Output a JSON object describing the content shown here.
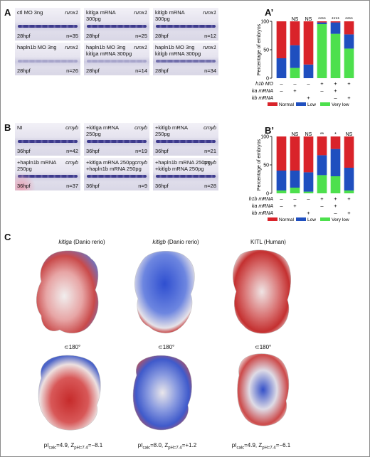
{
  "panel_labels": {
    "A": "A",
    "A_prime": "A’",
    "B": "B",
    "B_prime": "B’",
    "C": "C"
  },
  "panel_A": {
    "tiles": [
      {
        "line1": "ctl MO 3ng",
        "line2": "",
        "probe": "runx1",
        "stage": "28hpf",
        "n": "n=35",
        "signal": "strong"
      },
      {
        "line1": "kitlga mRNA",
        "line2": "300pg",
        "probe": "runx1",
        "stage": "28hpf",
        "n": "n=25",
        "signal": "strong"
      },
      {
        "line1": "kitlgb mRNA",
        "line2": "300pg",
        "probe": "runx1",
        "stage": "28hpf",
        "n": "n=12",
        "signal": "strong"
      },
      {
        "line1": "hapln1b MO 3ng",
        "line2": "",
        "probe": "runx1",
        "stage": "28hpf",
        "n": "n=26",
        "signal": "faint"
      },
      {
        "line1": "hapln1b MO 3ng",
        "line2": "kitlga mRNA 300pg",
        "probe": "runx1",
        "stage": "28hpf",
        "n": "n=14",
        "signal": "faint"
      },
      {
        "line1": "hapln1b MO 3ng",
        "line2": "kitlgb mRNA 300pg",
        "probe": "runx1",
        "stage": "28hpf",
        "n": "n=34",
        "signal": "mid"
      }
    ]
  },
  "panel_B": {
    "tiles": [
      {
        "line1": "NI",
        "line2": "",
        "probe": "cmyb",
        "stage": "36hpf",
        "n": "n=42",
        "signal": "strong"
      },
      {
        "line1": "+kitlga mRNA",
        "line2": "250pg",
        "probe": "cmyb",
        "stage": "36hpf",
        "n": "n=19",
        "signal": "strong"
      },
      {
        "line1": "+kitlgb mRNA",
        "line2": "250pg",
        "probe": "cmyb",
        "stage": "36hpf",
        "n": "n=21",
        "signal": "strong"
      },
      {
        "line1": "+hapln1b mRNA",
        "line2": "250pg",
        "probe": "cmyb",
        "stage": "36hpf",
        "n": "n=37",
        "signal": "strong"
      },
      {
        "line1": "+kitlga mRNA 250pg",
        "line2": "+hapln1b mRNA 250pg",
        "probe": "cmyb",
        "stage": "36hpf",
        "n": "n=9",
        "signal": "strong"
      },
      {
        "line1": "+hapln1b mRNA 250pg",
        "line2": "+kitlgb mRNA 250pg",
        "probe": "cmyb",
        "stage": "36hpf",
        "n": "n=28",
        "signal": "strong"
      }
    ]
  },
  "chart_data": [
    {
      "type": "bar",
      "stacked": true,
      "ylabel": "Percentage of embryos",
      "ylim": [
        0,
        100
      ],
      "yticks": [
        0,
        50,
        100
      ],
      "categories": [
        "1",
        "2",
        "3",
        "4",
        "5",
        "6"
      ],
      "significance": [
        "",
        "NS",
        "NS",
        "****",
        "****",
        "****"
      ],
      "series": [
        {
          "name": "Very low",
          "color": "#4de04d",
          "values": [
            0,
            18,
            0,
            95,
            78,
            52
          ]
        },
        {
          "name": "Low",
          "color": "#1f4fbf",
          "values": [
            35,
            40,
            24,
            3,
            20,
            25
          ]
        },
        {
          "name": "Normal",
          "color": "#d9232a",
          "values": [
            65,
            42,
            76,
            2,
            2,
            23
          ]
        }
      ],
      "condition_rows": [
        {
          "label": "h1b MO",
          "marks": [
            "–",
            "–",
            "–",
            "+",
            "+",
            "+"
          ]
        },
        {
          "label": "ka mRNA",
          "marks": [
            "–",
            "+",
            "",
            "–",
            "+",
            ""
          ]
        },
        {
          "label": "kb mRNA",
          "marks": [
            "",
            "",
            "+",
            "",
            "–",
            "+"
          ]
        }
      ],
      "legend": [
        "Normal",
        "Low",
        "Very low"
      ],
      "legend_position": "bottom"
    },
    {
      "type": "bar",
      "stacked": true,
      "ylabel": "Percentage of embryos",
      "ylim": [
        0,
        100
      ],
      "yticks": [
        0,
        50,
        100
      ],
      "categories": [
        "1",
        "2",
        "3",
        "4",
        "5",
        "6"
      ],
      "significance": [
        "",
        "NS",
        "NS",
        "**",
        "*",
        "NS"
      ],
      "series": [
        {
          "name": "Very low",
          "color": "#4de04d",
          "values": [
            5,
            10,
            3,
            32,
            30,
            5
          ]
        },
        {
          "name": "Low",
          "color": "#1f4fbf",
          "values": [
            35,
            30,
            34,
            35,
            48,
            40
          ]
        },
        {
          "name": "Normal",
          "color": "#d9232a",
          "values": [
            60,
            60,
            63,
            33,
            22,
            55
          ]
        }
      ],
      "condition_rows": [
        {
          "label": "h1b mRNA",
          "marks": [
            "–",
            "–",
            "–",
            "+",
            "+",
            "+"
          ]
        },
        {
          "label": "ka mRNA",
          "marks": [
            "–",
            "+",
            "",
            "–",
            "+",
            ""
          ]
        },
        {
          "label": "kb mRNA",
          "marks": [
            "",
            "",
            "+",
            "",
            "–",
            "+"
          ]
        }
      ],
      "legend": [
        "Normal",
        "Low",
        "Very low"
      ],
      "legend_position": "bottom"
    }
  ],
  "panel_C": {
    "structures": [
      {
        "title_gene": "kitlga",
        "title_rest": " (Danio rerio)",
        "pi": "4.9",
        "z": "−8.1",
        "tone": "negative"
      },
      {
        "title_gene": "kitlgb",
        "title_rest": " (Danio rerio)",
        "pi": "8.0",
        "z": "+1.2",
        "tone": "positive"
      },
      {
        "title_gene": "",
        "title_rest": "KITL (Human)",
        "pi": "4.9",
        "z": "−6.1",
        "tone": "negative"
      }
    ],
    "rotation_label": "180°",
    "pi_prefix": "pI",
    "pi_sub": "calc",
    "z_prefix": "Z",
    "z_sub": "pH=7.4"
  }
}
